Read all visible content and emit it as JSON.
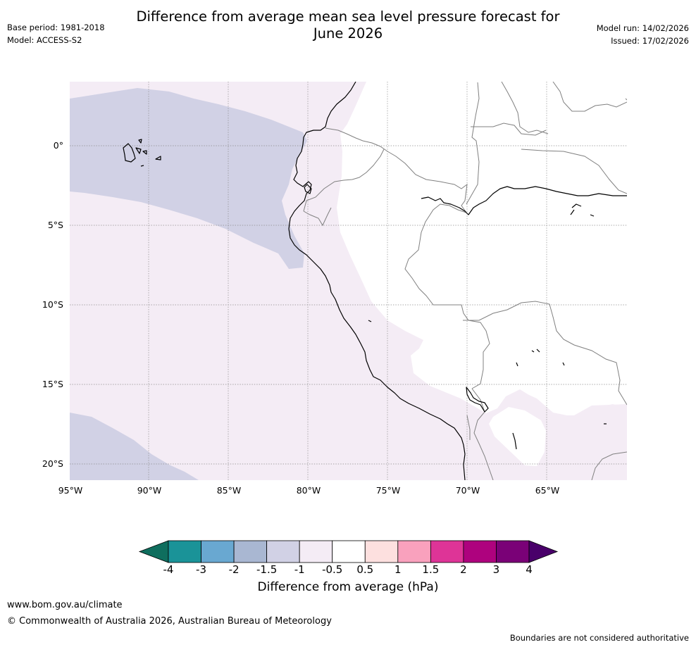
{
  "title": {
    "line1": "Difference from average mean sea level pressure forecast for",
    "line2": "June 2026"
  },
  "meta": {
    "base_period": "Base period: 1981-2018",
    "model": "Model: ACCESS-S2",
    "model_run": "Model run: 14/02/2026",
    "issued": "Issued: 17/02/2026"
  },
  "map": {
    "lat_labels": [
      "0°",
      "5°S",
      "10°S",
      "15°S",
      "20°S"
    ],
    "lon_labels": [
      "95°W",
      "90°W",
      "85°W",
      "80°W",
      "75°W",
      "70°W",
      "65°W"
    ],
    "colors": {
      "anomaly_minus_1_to_minus_1_5": "#d1d1e5",
      "anomaly_minus_0_5_to_minus_1": "#f4ecf5",
      "neutral": "#ffffff",
      "coastline": "#000000",
      "border": "#808080",
      "gridline": "#888888"
    }
  },
  "colorbar": {
    "title": "Difference from average (hPa)",
    "ticks": [
      "-4",
      "-3",
      "-2",
      "-1.5",
      "-1",
      "-0.5",
      "0.5",
      "1",
      "1.5",
      "2",
      "3",
      "4"
    ],
    "colors": [
      "#0f6e5e",
      "#1a9398",
      "#69a8d1",
      "#a9b7d2",
      "#d1d1e5",
      "#f4ecf5",
      "#ffffff",
      "#fde0df",
      "#f9a1bd",
      "#de3497",
      "#ae027e",
      "#7a0177",
      "#49006a"
    ]
  },
  "footer": {
    "url": "www.bom.gov.au/climate",
    "copyright": "© Commonwealth of Australia 2026, Australian Bureau of Meteorology",
    "disclaimer": "Boundaries are not considered authoritative"
  }
}
